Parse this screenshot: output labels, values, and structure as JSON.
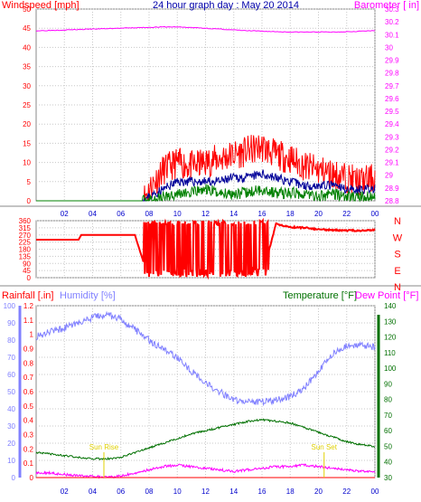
{
  "header": {
    "title": "24 hour graph day : May 20 2014"
  },
  "colors": {
    "wind": "#ff0000",
    "gust": "#ff0000",
    "wind_avg": "#000099",
    "wind_green": "#008000",
    "baro": "#ff00ff",
    "dir": "#ff0000",
    "rain": "#ff0000",
    "humidity": "#8080ff",
    "temperature": "#007000",
    "dewpoint": "#ff00ff",
    "grid": "#c8c8c8",
    "axis_blue": "#0000cc",
    "sun": "#e0d000"
  },
  "chart_data": [
    {
      "type": "line",
      "name": "wind-baro",
      "title": "24 hour graph day : May 20 2014",
      "ylabel_left": "Windspeed [mph]",
      "ylabel_right": "Barometer [ in]",
      "x_ticks": [
        "02",
        "04",
        "06",
        "08",
        "10",
        "12",
        "14",
        "16",
        "18",
        "20",
        "22",
        "00"
      ],
      "left_ticks": [
        "0",
        "5",
        "10",
        "15",
        "20",
        "25",
        "30",
        "35",
        "40",
        "45",
        "50"
      ],
      "ylim_left": [
        0,
        50
      ],
      "right_ticks": [
        "28.8",
        "28.9",
        "29",
        "29.1",
        "29.2",
        "29.3",
        "29.4",
        "29.5",
        "29.6",
        "29.7",
        "29.8",
        "29.9",
        "30",
        "30.1",
        "30.2",
        "30.3"
      ],
      "ylim_right": [
        28.8,
        30.3
      ],
      "series": [
        {
          "values_hint": "barometer",
          "x": [
            0,
            3,
            6,
            9,
            10,
            12,
            15,
            18,
            21,
            24
          ],
          "values": [
            30.13,
            30.14,
            30.15,
            30.16,
            30.16,
            30.15,
            30.13,
            30.12,
            30.12,
            30.13
          ]
        },
        {
          "values_hint": "gust",
          "x": [
            0,
            7.5,
            8,
            9,
            10,
            11,
            12,
            13,
            14,
            15,
            16,
            17,
            18,
            19,
            20,
            21,
            22,
            23,
            24
          ],
          "values": [
            0,
            0,
            3,
            8,
            10,
            9,
            10,
            11,
            12,
            13,
            14,
            12,
            11,
            9,
            8,
            7,
            6,
            5,
            6
          ]
        },
        {
          "values_hint": "average",
          "x": [
            0,
            7.5,
            8,
            9,
            10,
            11,
            12,
            13,
            14,
            15,
            16,
            17,
            18,
            19,
            20,
            21,
            22,
            23,
            24
          ],
          "values": [
            0,
            0,
            1,
            3,
            5,
            5,
            5,
            5,
            6,
            6,
            7,
            6,
            5,
            4,
            4,
            4,
            3,
            3,
            3
          ]
        },
        {
          "values_hint": "lull",
          "x": [
            0,
            7.5,
            8,
            9,
            10,
            11,
            12,
            13,
            14,
            15,
            16,
            17,
            18,
            19,
            20,
            21,
            22,
            23,
            24
          ],
          "values": [
            0,
            0,
            0,
            1,
            2,
            2,
            3,
            2,
            2,
            2,
            3,
            2,
            2,
            2,
            1,
            2,
            1,
            1,
            1
          ]
        }
      ],
      "grid": true
    },
    {
      "type": "scatter",
      "name": "wind-direction",
      "left_ticks": [
        "0",
        "45",
        "90",
        "135",
        "180",
        "225",
        "270",
        "315",
        "360"
      ],
      "ylim": [
        0,
        360
      ],
      "right_labels": [
        "N",
        "W",
        "S",
        "E",
        "N"
      ],
      "series": [
        {
          "values_hint": "direction",
          "x": [
            0,
            3,
            3.2,
            6,
            7,
            7.1,
            7.6,
            8,
            9,
            10,
            11,
            12,
            13,
            14,
            15,
            16,
            17,
            18,
            19,
            20,
            21,
            22,
            23,
            24
          ],
          "values": [
            240,
            240,
            270,
            270,
            270,
            240,
            100,
            40,
            30,
            20,
            300,
            10,
            320,
            30,
            350,
            10,
            340,
            320,
            315,
            305,
            300,
            298,
            298,
            300
          ]
        }
      ],
      "grid": true
    },
    {
      "type": "line",
      "name": "rain-humidity-temperature",
      "ylabel_left": "Rainfall [.in]",
      "ylabel_humidity": "Humidity [%]",
      "ylabel_right": "Temperature [°F]",
      "ylabel_dewpoint": "Dew Point [°F]",
      "rain_ticks": [
        "0",
        "0.1",
        "0.2",
        "0.3",
        "0.4",
        "0.5",
        "0.6",
        "0.7",
        "0.8",
        "0.9",
        "1",
        "1.1",
        "1.2"
      ],
      "humidity_ticks": [
        "0",
        "10",
        "20",
        "30",
        "40",
        "50",
        "60",
        "70",
        "80",
        "90",
        "100"
      ],
      "temp_ticks": [
        "30",
        "40",
        "50",
        "60",
        "70",
        "80",
        "90",
        "100",
        "110",
        "120",
        "130",
        "140"
      ],
      "x_ticks": [
        "02",
        "04",
        "06",
        "08",
        "10",
        "12",
        "14",
        "16",
        "18",
        "20",
        "22",
        "00"
      ],
      "sunrise_label": "Sun Rise",
      "sunset_label": "Sun Set",
      "sunrise_hour": 4.8,
      "sunset_hour": 20.4,
      "series": [
        {
          "values_hint": "humidity",
          "x": [
            0,
            1,
            2,
            3,
            4,
            5,
            6,
            7,
            8,
            9,
            10,
            11,
            12,
            13,
            14,
            15,
            16,
            17,
            18,
            19,
            20,
            21,
            22,
            23,
            24
          ],
          "values": [
            82,
            85,
            87,
            90,
            93,
            95,
            92,
            86,
            80,
            75,
            70,
            62,
            55,
            50,
            45,
            44,
            44,
            45,
            47,
            52,
            62,
            72,
            77,
            77,
            76
          ]
        },
        {
          "values_hint": "temperature",
          "x": [
            0,
            1,
            2,
            3,
            4,
            5,
            6,
            7,
            8,
            9,
            10,
            11,
            12,
            13,
            14,
            15,
            16,
            17,
            18,
            19,
            20,
            21,
            22,
            23,
            24
          ],
          "values": [
            46,
            45,
            44,
            43,
            42,
            42,
            43,
            46,
            49,
            52,
            55,
            58,
            60,
            62,
            64,
            66,
            67,
            66,
            65,
            62,
            59,
            56,
            53,
            51,
            50
          ]
        },
        {
          "values_hint": "dewpoint",
          "x": [
            0,
            1,
            2,
            3,
            4,
            5,
            6,
            7,
            8,
            9,
            10,
            11,
            12,
            13,
            14,
            15,
            16,
            17,
            18,
            19,
            20,
            21,
            22,
            23,
            24
          ],
          "values": [
            33,
            33,
            32,
            31,
            31,
            30,
            31,
            33,
            35,
            37,
            38,
            37,
            36,
            35,
            34,
            35,
            36,
            37,
            37,
            38,
            37,
            36,
            35,
            34,
            34
          ]
        },
        {
          "values_hint": "rain",
          "x": [
            0,
            24
          ],
          "values": [
            0,
            0
          ]
        }
      ],
      "grid": true
    }
  ]
}
